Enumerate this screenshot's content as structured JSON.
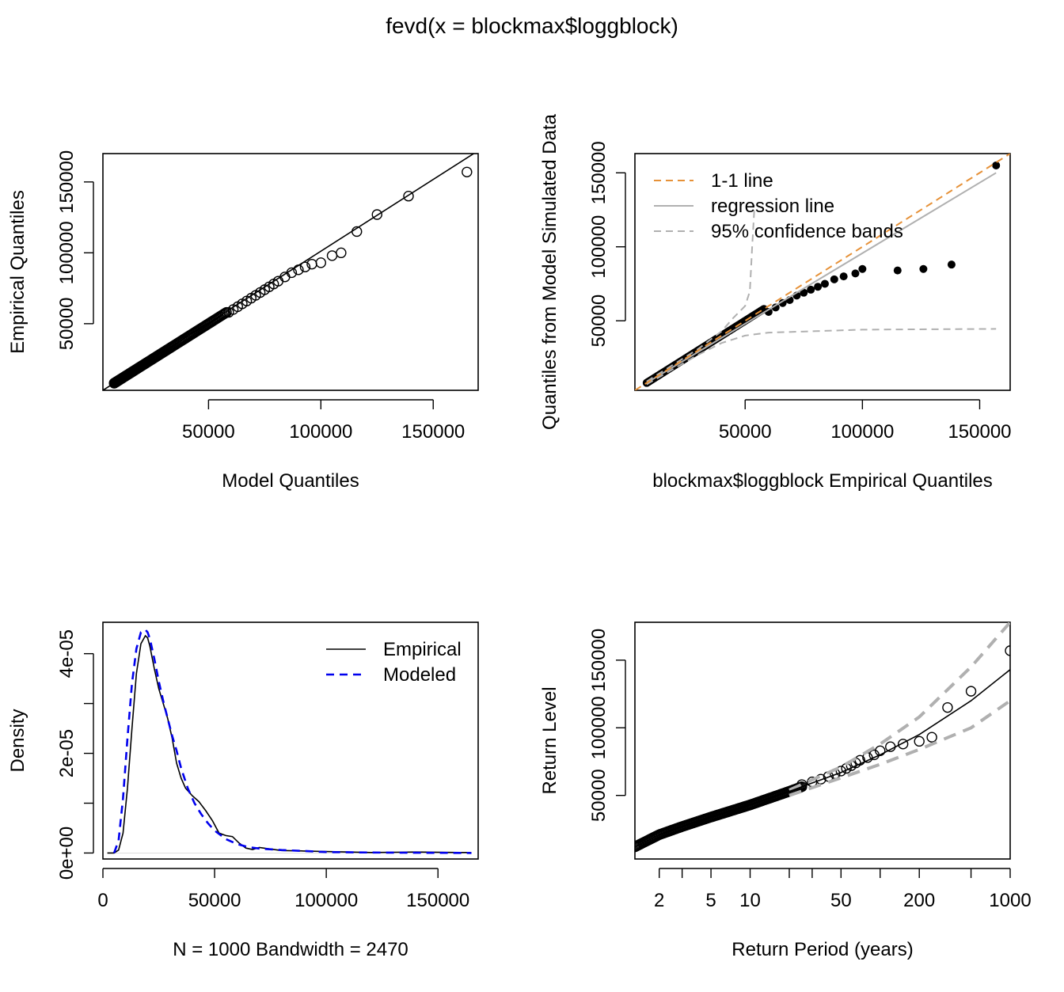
{
  "page_title": "fevd(x = blockmax$loggblock)",
  "chart_data": [
    {
      "id": "qq-model",
      "type": "scatter",
      "xlabel": "Model Quantiles",
      "ylabel": "Empirical Quantiles",
      "xlim": [
        3000,
        170000
      ],
      "ylim": [
        3000,
        170000
      ],
      "xticks": [
        50000,
        100000,
        150000
      ],
      "yticks": [
        50000,
        100000,
        150000
      ],
      "xtick_labels": [
        "50000",
        "100000",
        "150000"
      ],
      "ytick_labels": [
        "50000",
        "100000",
        "150000"
      ],
      "upper_tail_points": {
        "x": [
          59000,
          61000,
          63000,
          65000,
          67000,
          69000,
          71000,
          73000,
          75000,
          77000,
          79000,
          81000,
          84000,
          87000,
          90000,
          93000,
          96000,
          100000,
          105000,
          109000,
          116000,
          125000,
          139000,
          165000
        ],
        "y": [
          58000,
          60000,
          62000,
          64000,
          66000,
          68000,
          70000,
          72000,
          74000,
          76000,
          78000,
          80000,
          83000,
          86000,
          88000,
          90000,
          92000,
          93000,
          98000,
          100000,
          115000,
          127000,
          140000,
          157000
        ]
      },
      "fit_line": {
        "x": [
          3000,
          170000
        ],
        "y": [
          3000,
          172000
        ]
      },
      "marker": "open-circle"
    },
    {
      "id": "qq-simulated",
      "type": "scatter",
      "xlabel": "blockmax$loggblock Empirical Quantiles",
      "ylabel": "Quantiles from Model Simulated Data",
      "xlim": [
        3000,
        163000
      ],
      "ylim": [
        3000,
        163000
      ],
      "xticks": [
        50000,
        100000,
        150000
      ],
      "yticks": [
        50000,
        100000,
        150000
      ],
      "xtick_labels": [
        "50000",
        "100000",
        "150000"
      ],
      "ytick_labels": [
        "50000",
        "100000",
        "150000"
      ],
      "legend": {
        "position": "top-left",
        "entries": [
          "1-1 line",
          "regression line",
          "95% confidence bands"
        ],
        "colors": [
          "#e69138",
          "#b0b0b0",
          "#b0b0b0"
        ]
      },
      "upper_tail_points": {
        "x": [
          60000,
          63000,
          66000,
          69000,
          72000,
          75000,
          78000,
          81000,
          84000,
          88000,
          92000,
          97000,
          100000,
          115000,
          126000,
          138000,
          157000
        ],
        "y": [
          56000,
          59000,
          62000,
          64000,
          67000,
          69000,
          71000,
          73000,
          75000,
          78000,
          80000,
          82000,
          85000,
          84000,
          85000,
          88000,
          155000
        ]
      },
      "one_to_one": {
        "x": [
          3000,
          163000
        ],
        "y": [
          3000,
          163000
        ]
      },
      "regression": {
        "x": [
          8000,
          157000
        ],
        "y": [
          8000,
          150000
        ]
      },
      "band_upper": {
        "x": [
          8000,
          20000,
          30000,
          40000,
          45000,
          50000,
          52000,
          53000,
          54000
        ],
        "y": [
          9000,
          21000,
          31000,
          43000,
          52000,
          60000,
          70000,
          100000,
          128000
        ]
      },
      "band_lower": {
        "x": [
          8000,
          20000,
          30000,
          40000,
          50000,
          60000,
          80000,
          100000,
          157000
        ],
        "y": [
          7000,
          18000,
          27000,
          35000,
          40000,
          42000,
          43000,
          44000,
          44500
        ]
      },
      "marker": "filled-circle"
    },
    {
      "id": "density",
      "type": "line",
      "xlabel": "N = 1000   Bandwidth = 2470",
      "ylabel": "Density",
      "xlim": [
        0,
        168000
      ],
      "ylim": [
        -1.2e-06,
        4.63e-05
      ],
      "xticks": [
        0,
        50000,
        100000,
        150000
      ],
      "yticks": [
        0,
        1e-05,
        2e-05,
        3e-05,
        4e-05
      ],
      "xtick_labels": [
        "0",
        "50000",
        "100000",
        "150000"
      ],
      "ytick_labels": [
        "0e+00",
        "",
        "2e-05",
        "",
        "4e-05"
      ],
      "legend": {
        "position": "top-right",
        "entries": [
          "Empirical",
          "Modeled"
        ]
      },
      "series": [
        {
          "name": "Empirical",
          "color": "#000000",
          "x": [
            2000,
            5000,
            7000,
            9000,
            11000,
            13000,
            15000,
            17000,
            19000,
            20000,
            21000,
            23000,
            25000,
            27000,
            29000,
            31000,
            33000,
            35000,
            37000,
            40000,
            43000,
            46000,
            49000,
            52000,
            55000,
            58000,
            61000,
            64000,
            67000,
            70000,
            75000,
            80000,
            90000,
            100000,
            120000,
            140000,
            160000,
            165000
          ],
          "y": [
            0,
            0,
            6e-07,
            4e-06,
            1.3e-05,
            2.5e-05,
            3.6e-05,
            4.2e-05,
            4.36e-05,
            4.32e-05,
            4.15e-05,
            3.7e-05,
            3.3e-05,
            3e-05,
            2.7e-05,
            2.3e-05,
            1.8e-05,
            1.5e-05,
            1.3e-05,
            1.15e-05,
            1.03e-05,
            8.5e-06,
            6.5e-06,
            4e-06,
            3.5e-06,
            3.3e-06,
            2e-06,
            1e-06,
            7e-07,
            1.1e-06,
            8e-07,
            5e-07,
            4e-07,
            3e-07,
            1e-07,
            2e-07,
            1e-07,
            1e-07
          ]
        },
        {
          "name": "Modeled",
          "color": "#0000ee",
          "x": [
            5000,
            7000,
            9000,
            11000,
            13000,
            15000,
            17000,
            19000,
            20000,
            21000,
            23000,
            25000,
            27000,
            29000,
            31000,
            33000,
            35000,
            38000,
            41000,
            44000,
            47000,
            50000,
            55000,
            60000,
            65000,
            70000,
            80000,
            90000,
            100000,
            120000,
            140000,
            160000,
            165000
          ],
          "y": [
            0,
            2.5e-06,
            1.1e-05,
            2.3e-05,
            3.4e-05,
            4.1e-05,
            4.43e-05,
            4.48e-05,
            4.43e-05,
            4.3e-05,
            3.9e-05,
            3.45e-05,
            3.05e-05,
            2.7e-05,
            2.35e-05,
            2.05e-05,
            1.7e-05,
            1.3e-05,
            1e-05,
            7.8e-06,
            6e-06,
            4.5e-06,
            2.8e-06,
            1.8e-06,
            1.2e-06,
            9e-07,
            6e-07,
            4e-07,
            2e-07,
            1e-07,
            5e-08,
            2e-08,
            0
          ]
        }
      ]
    },
    {
      "id": "return-level",
      "type": "line",
      "xlabel": "Return Period (years)",
      "ylabel": "Return Level",
      "x_scale": "log",
      "xlim": [
        1.3,
        1000
      ],
      "ylim": [
        3000,
        178000
      ],
      "xticks": [
        2,
        5,
        10,
        50,
        200,
        1000
      ],
      "xticks_minor": [
        3,
        20,
        30,
        100,
        500
      ],
      "xtick_labels": [
        "2",
        "5",
        "10",
        "50",
        "200",
        "1000"
      ],
      "yticks": [
        50000,
        100000,
        150000
      ],
      "ytick_labels": [
        "50000",
        "100000",
        "150000"
      ],
      "upper_tail_points": {
        "x": [
          25,
          30,
          35,
          40,
          45,
          50,
          55,
          60,
          65,
          70,
          80,
          90,
          100,
          120,
          150,
          200,
          250,
          330,
          500,
          1000
        ],
        "y": [
          58000,
          60000,
          62000,
          64000,
          66000,
          68000,
          70000,
          72000,
          74000,
          76000,
          78000,
          80000,
          83000,
          86000,
          88000,
          90000,
          93000,
          115000,
          127000,
          157000
        ]
      },
      "fit_line": {
        "x": [
          1.3,
          2,
          3,
          5,
          10,
          20,
          50,
          100,
          200,
          500,
          1000
        ],
        "y": [
          12000,
          21000,
          27000,
          34000,
          43000,
          53000,
          67000,
          80000,
          95000,
          120000,
          143000
        ]
      },
      "ci_upper": {
        "x": [
          20,
          50,
          100,
          200,
          500,
          1000
        ],
        "y": [
          54000,
          71000,
          88000,
          108000,
          145000,
          178000
        ]
      },
      "ci_lower": {
        "x": [
          20,
          50,
          100,
          200,
          500,
          1000
        ],
        "y": [
          50000,
          63000,
          73000,
          84000,
          100000,
          120000
        ]
      },
      "marker": "open-circle"
    }
  ]
}
